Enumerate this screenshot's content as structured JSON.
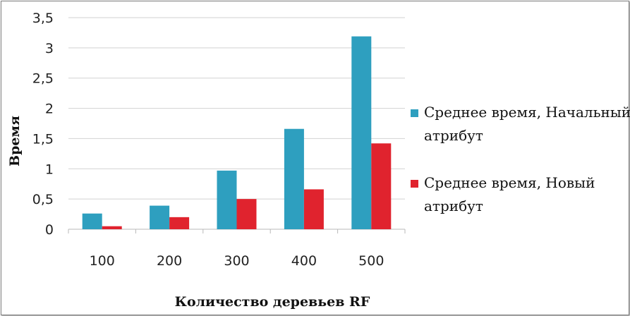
{
  "chart_data": {
    "type": "bar",
    "xlabel": "Количество деревьев RF",
    "ylabel": "Время",
    "categories": [
      "100",
      "200",
      "300",
      "400",
      "500"
    ],
    "ylim": [
      0,
      3.5
    ],
    "yticks": [
      "0",
      "0,5",
      "1",
      "1,5",
      "2",
      "2,5",
      "3",
      "3,5"
    ],
    "grid": true,
    "legend_position": "right",
    "series": [
      {
        "name_lines": [
          "Среднее время, Начальный",
          "атрибут"
        ],
        "color": "#2e9fbf",
        "values": [
          0.26,
          0.39,
          0.97,
          1.66,
          3.19
        ]
      },
      {
        "name_lines": [
          "Среднее время, Новый",
          "атрибут"
        ],
        "color": "#e0232e",
        "values": [
          0.05,
          0.2,
          0.5,
          0.66,
          1.42
        ]
      }
    ]
  }
}
